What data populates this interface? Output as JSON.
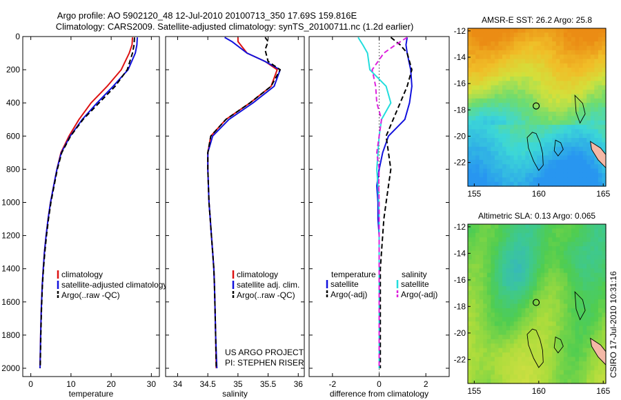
{
  "header": {
    "line1": "Argo profile: AO 5902120_48 12-Jul-2010 20100713_350 17.69S 159.816E",
    "line2": "Climatology: CARS2009. Satellite-adjusted climatology: synTS_20100711.nc (1.2d earlier)"
  },
  "footer_credit": "CSIRO 17-Jul-2010 10:31:16",
  "colors": {
    "climatology": "#dd1111",
    "satellite": "#1111dd",
    "argo": "#000000",
    "salinity_satellite": "#22dddd",
    "salinity_argo": "#dd22dd"
  },
  "chart_data": [
    {
      "type": "line",
      "id": "temperature",
      "xlabel": "temperature",
      "xlim": [
        -2,
        32
      ],
      "ylim": [
        2050,
        0
      ],
      "xticks": [
        "0",
        "10",
        "20",
        "30"
      ],
      "xtick_values": [
        0,
        10,
        20,
        30
      ],
      "yticks": [
        "0",
        "200",
        "400",
        "600",
        "800",
        "1000",
        "1200",
        "1400",
        "1600",
        "1800",
        "2000"
      ],
      "ytick_values": [
        0,
        200,
        400,
        600,
        800,
        1000,
        1200,
        1400,
        1600,
        1800,
        2000
      ],
      "legend": [
        "climatology",
        "satellite-adjusted climatology",
        "Argo(..raw -QC)"
      ],
      "series": [
        {
          "name": "climatology",
          "style": "solid",
          "color": "#dd1111",
          "x": [
            25.3,
            25.2,
            24.5,
            22.5,
            19,
            15,
            12,
            9.5,
            7.5,
            6.5,
            5.7,
            4.9,
            4.3,
            3.8,
            3.4,
            3.1,
            2.85,
            2.6,
            2.45,
            2.3
          ],
          "y": [
            5,
            50,
            100,
            200,
            300,
            400,
            500,
            600,
            700,
            800,
            900,
            1000,
            1100,
            1200,
            1300,
            1400,
            1500,
            1650,
            1800,
            2000
          ]
        },
        {
          "name": "satellite-adjusted climatology",
          "style": "solid",
          "color": "#1111dd",
          "x": [
            26.5,
            26.4,
            26.0,
            24.2,
            20.5,
            16.5,
            12.8,
            9.8,
            7.6,
            6.5,
            5.7,
            4.9,
            4.3,
            3.8,
            3.4,
            3.1,
            2.85,
            2.6,
            2.45,
            2.3
          ],
          "y": [
            5,
            50,
            100,
            200,
            300,
            400,
            500,
            600,
            700,
            800,
            900,
            1000,
            1100,
            1200,
            1300,
            1400,
            1500,
            1650,
            1800,
            2000
          ]
        },
        {
          "name": "Argo(..raw -QC)",
          "style": "dashed",
          "color": "#000000",
          "x": [
            25.8,
            25.7,
            25.3,
            24.0,
            21.0,
            17.0,
            13.0,
            9.9,
            7.7,
            6.6,
            5.8,
            5.0,
            4.4,
            3.9,
            3.5,
            3.15,
            2.9,
            2.65,
            2.5,
            2.35
          ],
          "y": [
            5,
            50,
            100,
            200,
            300,
            400,
            500,
            600,
            700,
            800,
            900,
            1000,
            1100,
            1200,
            1300,
            1400,
            1500,
            1650,
            1800,
            2000
          ]
        }
      ]
    },
    {
      "type": "line",
      "id": "salinity",
      "xlabel": "salinity",
      "xlim": [
        33.8,
        36.1
      ],
      "ylim": [
        2050,
        0
      ],
      "xticks": [
        "34",
        "34.5",
        "35",
        "35.5",
        "36"
      ],
      "xtick_values": [
        34,
        34.5,
        35,
        35.5,
        36
      ],
      "legend": [
        "climatology",
        "satellite adj. clim.",
        "Argo(..raw -QC)"
      ],
      "annotation": [
        "US ARGO PROJECT",
        "PI: STEPHEN RISER"
      ],
      "series": [
        {
          "name": "climatology",
          "style": "solid",
          "color": "#dd1111",
          "x": [
            35.0,
            35.0,
            35.15,
            35.45,
            35.65,
            35.55,
            35.2,
            34.8,
            34.55,
            34.5,
            34.5,
            34.52,
            34.54,
            34.56,
            34.58,
            34.6,
            34.61,
            34.62,
            34.63,
            34.64
          ],
          "y": [
            5,
            30,
            100,
            150,
            200,
            300,
            400,
            500,
            600,
            700,
            800,
            1000,
            1100,
            1200,
            1300,
            1400,
            1500,
            1650,
            1800,
            2000
          ]
        },
        {
          "name": "satellite adj. clim.",
          "style": "solid",
          "color": "#1111dd",
          "x": [
            34.78,
            34.9,
            35.15,
            35.45,
            35.7,
            35.6,
            35.25,
            34.85,
            34.58,
            34.5,
            34.5,
            34.52,
            34.54,
            34.56,
            34.58,
            34.6,
            34.61,
            34.62,
            34.63,
            34.65
          ],
          "y": [
            5,
            30,
            100,
            150,
            200,
            300,
            400,
            500,
            600,
            700,
            800,
            1000,
            1100,
            1200,
            1300,
            1400,
            1500,
            1650,
            1800,
            2000
          ]
        },
        {
          "name": "Argo(..raw -QC)",
          "style": "dashed",
          "color": "#000000",
          "x": [
            35.45,
            35.5,
            35.45,
            35.5,
            35.7,
            35.55,
            35.2,
            34.8,
            34.55,
            34.5,
            34.5,
            34.52,
            34.54,
            34.56,
            34.58,
            34.6,
            34.61,
            34.62,
            34.63,
            34.64
          ],
          "y": [
            5,
            30,
            80,
            150,
            200,
            300,
            400,
            500,
            600,
            700,
            800,
            1000,
            1100,
            1200,
            1300,
            1400,
            1500,
            1650,
            1800,
            2000
          ]
        }
      ]
    },
    {
      "type": "line",
      "id": "difference",
      "xlabel": "difference from climatology",
      "xlim": [
        -3,
        3
      ],
      "ylim": [
        2050,
        0
      ],
      "xticks": [
        "-2",
        "0",
        "2"
      ],
      "xtick_values": [
        -2,
        0,
        2
      ],
      "legend_headers": [
        "temperature",
        "salinity"
      ],
      "legend_left": [
        "satellite",
        "Argo(-adj)"
      ],
      "legend_right": [
        "satellite",
        "Argo(-adj)"
      ],
      "series": [
        {
          "name": "temperature satellite",
          "style": "solid",
          "color": "#1111dd",
          "x": [
            1.2,
            1.15,
            1.2,
            1.35,
            1.4,
            1.3,
            1.1,
            0.4,
            0.15,
            0.0,
            -0.1,
            -0.05,
            -0.05,
            0.0,
            0.0,
            0.0,
            0.0,
            0.0,
            0.0,
            0.0
          ],
          "y": [
            5,
            50,
            100,
            200,
            300,
            400,
            500,
            600,
            700,
            800,
            900,
            1000,
            1100,
            1200,
            1300,
            1400,
            1500,
            1650,
            1800,
            2000
          ]
        },
        {
          "name": "temperature Argo(-adj)",
          "style": "dashed",
          "color": "#000000",
          "x": [
            0.5,
            0.9,
            1.2,
            1.4,
            1.2,
            0.9,
            0.6,
            0.3,
            0.4,
            0.5,
            0.4,
            0.3,
            0.2,
            0.15,
            0.1,
            0.05,
            0.05,
            0.05,
            0.05,
            0.05
          ],
          "y": [
            5,
            50,
            100,
            200,
            300,
            400,
            500,
            600,
            700,
            800,
            900,
            1000,
            1100,
            1200,
            1300,
            1400,
            1500,
            1650,
            1800,
            2000
          ]
        },
        {
          "name": "salinity satellite",
          "style": "solid",
          "color": "#22dddd",
          "x": [
            -0.9,
            -0.7,
            -0.5,
            -0.4,
            0.3,
            0.5,
            0.1,
            0.0,
            -0.05,
            -0.1,
            -0.05,
            -0.02,
            0.0,
            0.0,
            0.0,
            0.0,
            0.0,
            0.0,
            0.0,
            0.0
          ],
          "y": [
            5,
            50,
            100,
            200,
            300,
            400,
            500,
            600,
            700,
            800,
            900,
            1000,
            1100,
            1200,
            1300,
            1400,
            1500,
            1650,
            1800,
            2000
          ]
        },
        {
          "name": "salinity Argo(-adj)",
          "style": "dashed",
          "color": "#dd22dd",
          "x": [
            1.2,
            0.7,
            0.2,
            -0.3,
            -0.15,
            -0.1,
            0.1,
            0.0,
            -0.1,
            0.0,
            -0.02,
            0.0,
            0.0,
            0.0,
            0.0,
            0.0,
            0.0,
            0.0,
            0.0,
            0.0
          ],
          "y": [
            5,
            50,
            100,
            200,
            300,
            400,
            500,
            600,
            700,
            800,
            900,
            1000,
            1100,
            1200,
            1300,
            1400,
            1500,
            1650,
            1800,
            2000
          ]
        }
      ]
    },
    {
      "type": "heatmap",
      "id": "sst_map",
      "title": "AMSR-E SST: 26.2 Argo: 25.8",
      "xlim": [
        154.5,
        165.2
      ],
      "ylim": [
        -23.8,
        -11.8
      ],
      "xticks": [
        "155",
        "160",
        "165"
      ],
      "xtick_values": [
        155,
        160,
        165
      ],
      "yticks": [
        "-12",
        "-14",
        "-16",
        "-18",
        "-20",
        "-22"
      ],
      "ytick_values": [
        -12,
        -14,
        -16,
        -18,
        -20,
        -22
      ],
      "marker": {
        "lon": 159.8,
        "lat": -17.7
      }
    },
    {
      "type": "heatmap",
      "id": "sla_map",
      "title": "Altimetric SLA: 0.13 Argo: 0.065",
      "xlim": [
        154.5,
        165.2
      ],
      "ylim": [
        -23.8,
        -11.8
      ],
      "xticks": [
        "155",
        "160",
        "165"
      ],
      "xtick_values": [
        155,
        160,
        165
      ],
      "yticks": [
        "-12",
        "-14",
        "-16",
        "-18",
        "-20",
        "-22"
      ],
      "ytick_values": [
        -12,
        -14,
        -16,
        -18,
        -20,
        -22
      ],
      "marker": {
        "lon": 159.8,
        "lat": -17.7
      }
    }
  ]
}
